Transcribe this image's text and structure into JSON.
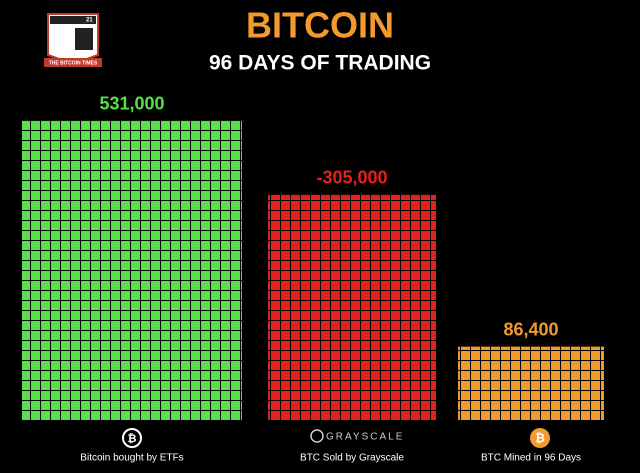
{
  "chart_data": {
    "type": "bar",
    "title": "BITCOIN",
    "subtitle": "96 DAYS OF TRADING",
    "logo_text": "THE BITCOIN TIMES",
    "logo_number": "21",
    "grayscale_logo": "GRAYSCALE",
    "categories": [
      "Bitcoin bought by ETFs",
      "BTC Sold by Grayscale",
      "BTC Mined in 96 Days"
    ],
    "values": [
      531000,
      -305000,
      86400
    ],
    "value_labels": [
      "531,000",
      "-305,000",
      "86,400"
    ],
    "colors": [
      "#58e04c",
      "#e8201c",
      "#f39a2c"
    ]
  }
}
